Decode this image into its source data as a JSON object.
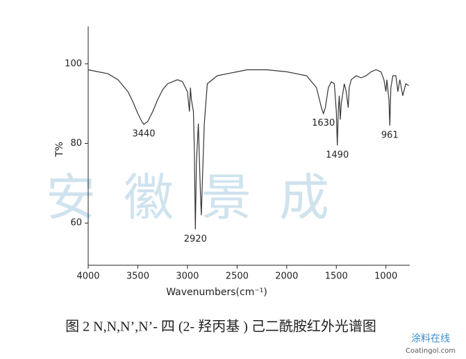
{
  "chart_data": {
    "type": "line",
    "x_label": "Wavenumbers(cm⁻¹)",
    "y_label": "T%",
    "xlim": [
      4000,
      760
    ],
    "xticks": [
      4000,
      3500,
      3000,
      2500,
      2000,
      1500,
      1000
    ],
    "x_reversed": true,
    "ylim": [
      49.4,
      109.4
    ],
    "yticks": [
      60,
      80,
      100
    ],
    "x": [
      4000,
      3900,
      3800,
      3700,
      3600,
      3550,
      3500,
      3460,
      3440,
      3400,
      3350,
      3300,
      3250,
      3200,
      3100,
      3050,
      3000,
      2980,
      2970,
      2960,
      2940,
      2930,
      2920,
      2910,
      2890,
      2870,
      2860,
      2850,
      2830,
      2800,
      2700,
      2600,
      2500,
      2400,
      2200,
      2000,
      1900,
      1800,
      1700,
      1650,
      1630,
      1610,
      1580,
      1550,
      1520,
      1500,
      1490,
      1480,
      1470,
      1460,
      1450,
      1420,
      1400,
      1380,
      1370,
      1350,
      1300,
      1250,
      1200,
      1150,
      1100,
      1050,
      1020,
      1000,
      990,
      970,
      961,
      950,
      930,
      900,
      880,
      860,
      830,
      800,
      770
    ],
    "series": [
      {
        "color": "#333333",
        "values": [
          98.5,
          98,
          97.5,
          96,
          93,
          90.5,
          87.5,
          85.5,
          84.8,
          85.5,
          88,
          91,
          93.5,
          95,
          96,
          95.5,
          93,
          88,
          94,
          91,
          88,
          78,
          58.4,
          75,
          85,
          68,
          62,
          70,
          85,
          95,
          97,
          97.5,
          98,
          98.5,
          98.5,
          98,
          97.5,
          97,
          94,
          89,
          87.5,
          89,
          94,
          95.5,
          95,
          88,
          79.5,
          88,
          92,
          86,
          90,
          95,
          93,
          89,
          94,
          96,
          97,
          96.5,
          97,
          98,
          98.5,
          98,
          96,
          93,
          96,
          91,
          84.5,
          94,
          97,
          97,
          93,
          96,
          92,
          95,
          94.5
        ]
      }
    ],
    "peaks": [
      3440,
      2920,
      1630,
      1490,
      961
    ],
    "watermark": "安徽景成",
    "caption": "图 2  N,N,N’,N’- 四 (2- 羟丙基 ) 己二酰胺红外光谱图",
    "logo": {
      "name": "涂料在线",
      "url": "Coatingol.com"
    }
  }
}
